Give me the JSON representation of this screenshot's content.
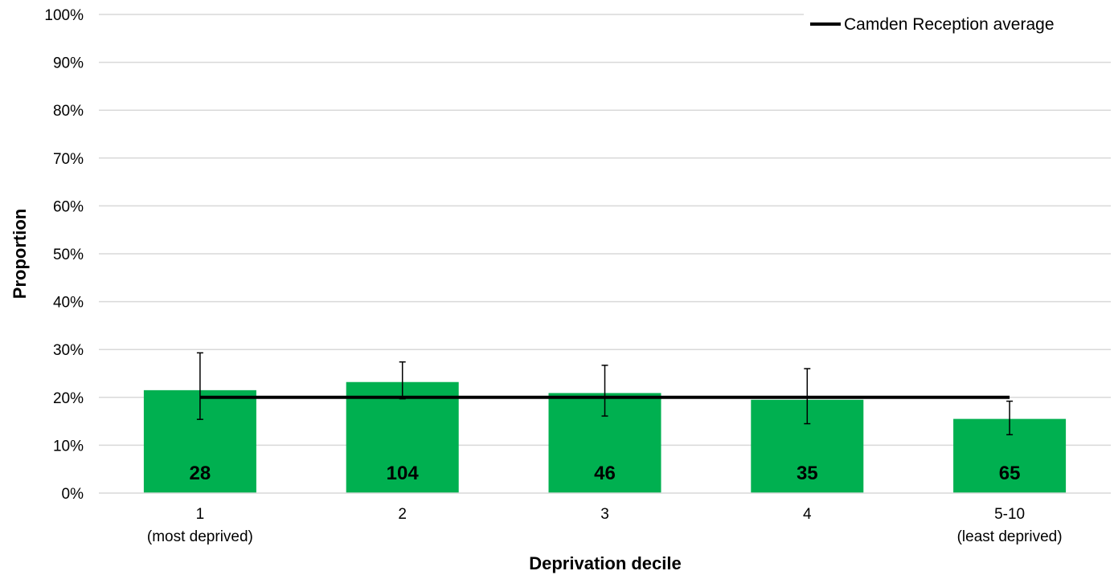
{
  "chart_data": {
    "type": "bar",
    "xlabel": "Deprivation decile",
    "ylabel": "Proportion",
    "ylim": [
      0,
      1
    ],
    "y_ticks": [
      "0%",
      "10%",
      "20%",
      "30%",
      "40%",
      "50%",
      "60%",
      "70%",
      "80%",
      "90%",
      "100%"
    ],
    "grid": true,
    "legend_position": "top-right",
    "categories": [
      {
        "line1": "1",
        "line2": "(most deprived)"
      },
      {
        "line1": "2",
        "line2": ""
      },
      {
        "line1": "3",
        "line2": ""
      },
      {
        "line1": "4",
        "line2": ""
      },
      {
        "line1": "5-10",
        "line2": "(least deprived)"
      }
    ],
    "values": [
      0.215,
      0.232,
      0.209,
      0.195,
      0.155
    ],
    "error_low": [
      0.154,
      0.197,
      0.161,
      0.145,
      0.122
    ],
    "error_high": [
      0.293,
      0.274,
      0.267,
      0.26,
      0.192
    ],
    "bar_labels": [
      "28",
      "104",
      "46",
      "35",
      "65"
    ],
    "reference_line": {
      "name": "Camden Reception average",
      "value": 0.2
    },
    "colors": {
      "bar": "#00B050",
      "reference": "#000000",
      "grid": "#D9D9D9",
      "error": "#000000"
    }
  }
}
